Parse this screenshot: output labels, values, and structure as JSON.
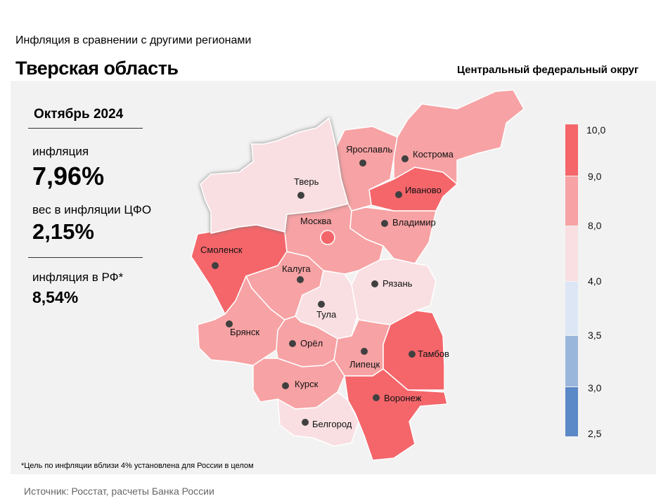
{
  "header": {
    "subtitle": "Инфляция в сравнении с другими регионами",
    "title": "Тверская область",
    "district": "Центральный федеральный округ"
  },
  "stats": {
    "period": "Октябрь 2024",
    "inflation_label": "инфляция",
    "inflation_value": "7,96%",
    "weight_label": "вес в инфляции ЦФО",
    "weight_value": "2,15%",
    "rf_label": "инфляция в РФ*",
    "rf_value": "8,54%"
  },
  "footnote": "*Цель по инфляции вблизи 4% установлена для России в целом",
  "source": "Источник: Росстат, расчеты Банка России",
  "colors": {
    "bin_9_10": "#f4666a",
    "bin_8_9": "#f7a2a4",
    "bin_4_8": "#f9dfe2",
    "bin_35_4": "#dce6f5",
    "bin_3_35": "#9bb6db",
    "bin_25_3": "#5b88c6"
  },
  "legend": {
    "ticks": [
      "10,0",
      "9,0",
      "8,0",
      "4,0",
      "3,5",
      "3,0",
      "2,5"
    ]
  },
  "regions": [
    {
      "id": "tver",
      "name": "Тверь",
      "bin": "4-8",
      "highlighted": true
    },
    {
      "id": "yaroslavl",
      "name": "Ярославль",
      "bin": "8-9"
    },
    {
      "id": "kostroma",
      "name": "Кострома",
      "bin": "8-9"
    },
    {
      "id": "ivanovo",
      "name": "Иваново",
      "bin": "9-10"
    },
    {
      "id": "moscow",
      "name": "Москва",
      "bin": "8-9"
    },
    {
      "id": "vladimir",
      "name": "Владимир",
      "bin": "8-9"
    },
    {
      "id": "smolensk",
      "name": "Смоленск",
      "bin": "9-10"
    },
    {
      "id": "kaluga",
      "name": "Калуга",
      "bin": "8-9"
    },
    {
      "id": "ryazan",
      "name": "Рязань",
      "bin": "4-8"
    },
    {
      "id": "tula",
      "name": "Тула",
      "bin": "4-8"
    },
    {
      "id": "bryansk",
      "name": "Брянск",
      "bin": "8-9"
    },
    {
      "id": "orel",
      "name": "Орёл",
      "bin": "8-9"
    },
    {
      "id": "lipetsk",
      "name": "Липецк",
      "bin": "8-9"
    },
    {
      "id": "tambov",
      "name": "Тамбов",
      "bin": "9-10"
    },
    {
      "id": "kursk",
      "name": "Курск",
      "bin": "8-9"
    },
    {
      "id": "voronezh",
      "name": "Воронеж",
      "bin": "9-10"
    },
    {
      "id": "belgorod",
      "name": "Белгород",
      "bin": "4-8"
    }
  ]
}
